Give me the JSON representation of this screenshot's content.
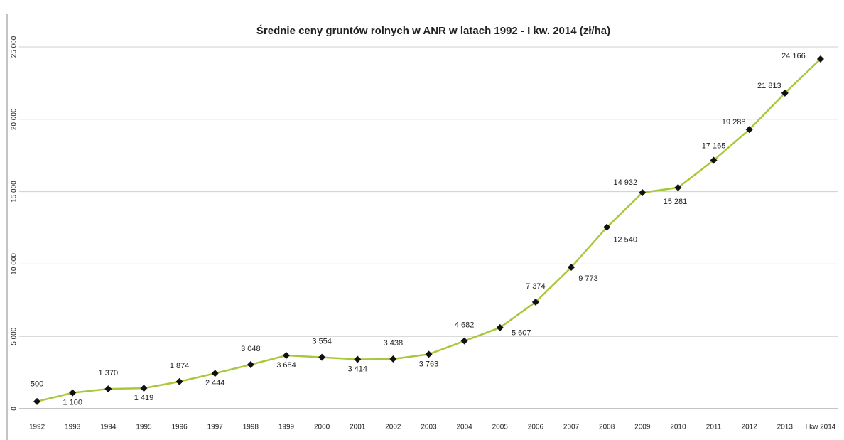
{
  "chart_data": {
    "type": "line",
    "title": "Średnie ceny gruntów rolnych w ANR w latach 1992 - I kw. 2014 (zł/ha)",
    "categories": [
      "1992",
      "1993",
      "1994",
      "1995",
      "1996",
      "1997",
      "1998",
      "1999",
      "2000",
      "2001",
      "2002",
      "2003",
      "2004",
      "2005",
      "2006",
      "2007",
      "2008",
      "2009",
      "2010",
      "2011",
      "2012",
      "2013",
      "I kw 2014"
    ],
    "series": [
      {
        "color": "#a8c83c",
        "values": [
          500,
          1100,
          1370,
          1419,
          1874,
          2444,
          3048,
          3684,
          3554,
          3414,
          3438,
          3763,
          4682,
          5607,
          7374,
          9773,
          12540,
          14932,
          15281,
          17165,
          19288,
          21813,
          24166
        ],
        "value_labels": [
          "500",
          "1 100",
          "1 370",
          "1 419",
          "1 874",
          "2 444",
          "3 048",
          "3 684",
          "3 554",
          "3 414",
          "3 438",
          "3 763",
          "4 682",
          "5 607",
          "7 374",
          "9 773",
          "12 540",
          "14 932",
          "15 281",
          "17 165",
          "19 288",
          "21 813",
          "24 166"
        ]
      }
    ],
    "ylim": [
      0,
      25000
    ],
    "yticks": [
      0,
      {
        "value": 5000,
        "label": "5 000"
      },
      {
        "value": 10000,
        "label": "10 000"
      },
      {
        "value": 15000,
        "label": "15 000"
      },
      {
        "value": 20000,
        "label": "20 000"
      },
      {
        "value": 25000,
        "label": "25 000"
      }
    ],
    "grid": true
  }
}
